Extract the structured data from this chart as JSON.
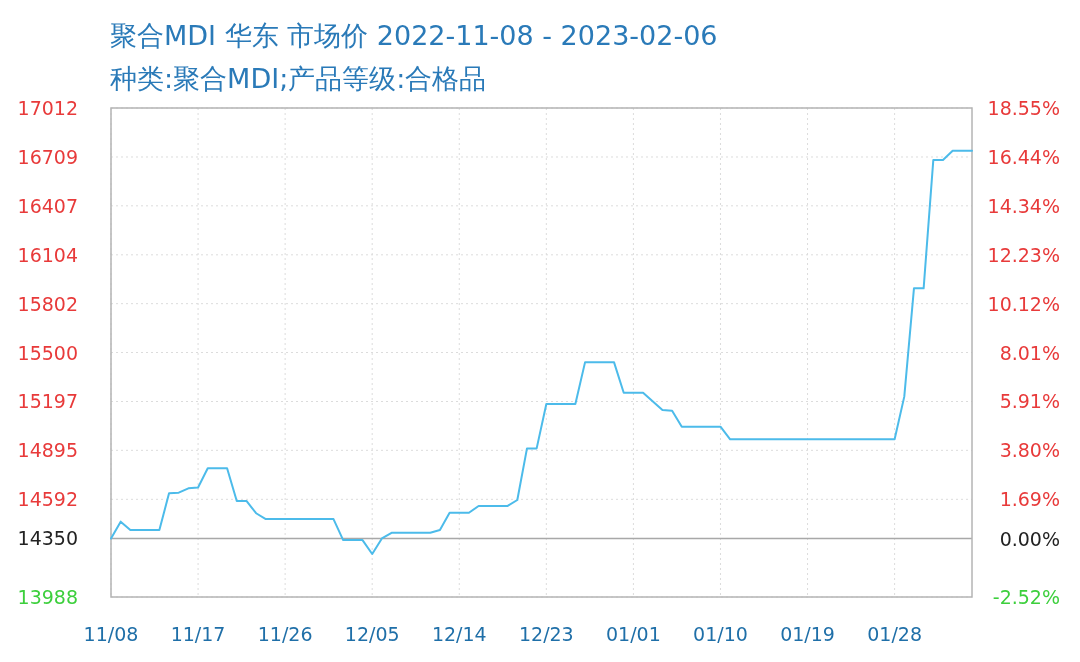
{
  "chart_data": {
    "type": "line",
    "title": "聚合MDI 华东 市场价 2022-11-08 - 2023-02-06",
    "subtitle": "种类:聚合MDI;产品等级:合格品",
    "x": [
      "2022-11-08",
      "2022-11-09",
      "2022-11-10",
      "2022-11-13",
      "2022-11-14",
      "2022-11-15",
      "2022-11-16",
      "2022-11-17",
      "2022-11-18",
      "2022-11-20",
      "2022-11-21",
      "2022-11-22",
      "2022-11-23",
      "2022-11-24",
      "2022-12-01",
      "2022-12-02",
      "2022-12-04",
      "2022-12-05",
      "2022-12-06",
      "2022-12-07",
      "2022-12-11",
      "2022-12-12",
      "2022-12-13",
      "2022-12-15",
      "2022-12-16",
      "2022-12-19",
      "2022-12-20",
      "2022-12-21",
      "2022-12-22",
      "2022-12-23",
      "2022-12-26",
      "2022-12-27",
      "2022-12-30",
      "2022-12-31",
      "2023-01-02",
      "2023-01-04",
      "2023-01-05",
      "2023-01-06",
      "2023-01-10",
      "2023-01-11",
      "2023-01-28",
      "2023-01-29",
      "2023-01-30",
      "2023-01-31",
      "2023-02-01",
      "2023-02-02",
      "2023-02-03",
      "2023-02-05"
    ],
    "series": [
      {
        "color": "#4cbbea",
        "values": [
          14350,
          14454,
          14402,
          14402,
          14629,
          14633,
          14660,
          14665,
          14784,
          14784,
          14582,
          14582,
          14506,
          14470,
          14470,
          14340,
          14340,
          14254,
          14350,
          14385,
          14385,
          14402,
          14509,
          14509,
          14551,
          14551,
          14588,
          14907,
          14907,
          15181,
          15181,
          15439,
          15439,
          15251,
          15251,
          15144,
          15140,
          15041,
          15041,
          14963,
          14963,
          15227,
          15897,
          15897,
          16690,
          16690,
          16748,
          16748
        ]
      }
    ],
    "xlim": [
      "2022-11-08",
      "2023-02-05"
    ],
    "xticks": [
      {
        "value": "2022-11-08",
        "label": "11/08"
      },
      {
        "value": "2022-11-17",
        "label": "11/17"
      },
      {
        "value": "2022-11-26",
        "label": "11/26"
      },
      {
        "value": "2022-12-05",
        "label": "12/05"
      },
      {
        "value": "2022-12-14",
        "label": "12/14"
      },
      {
        "value": "2022-12-23",
        "label": "12/23"
      },
      {
        "value": "2023-01-01",
        "label": "01/01"
      },
      {
        "value": "2023-01-10",
        "label": "01/10"
      },
      {
        "value": "2023-01-19",
        "label": "01/19"
      },
      {
        "value": "2023-01-28",
        "label": "01/28"
      }
    ],
    "ylim": [
      13988,
      17012
    ],
    "yticks": [
      13988,
      14350,
      14592,
      14895,
      15197,
      15500,
      15802,
      16104,
      16407,
      16709,
      17012
    ],
    "y2lim": [
      -2.52,
      18.55
    ],
    "y2ticks": [
      {
        "value": -2.52,
        "label": "-2.52%"
      },
      {
        "value": 0,
        "label": "0.00%"
      },
      {
        "value": 1.69,
        "label": "1.69%"
      },
      {
        "value": 3.8,
        "label": "3.80%"
      },
      {
        "value": 5.91,
        "label": "5.91%"
      },
      {
        "value": 8.01,
        "label": "8.01%"
      },
      {
        "value": 10.12,
        "label": "10.12%"
      },
      {
        "value": 12.23,
        "label": "12.23%"
      },
      {
        "value": 14.34,
        "label": "14.34%"
      },
      {
        "value": 16.44,
        "label": "16.44%"
      },
      {
        "value": 18.55,
        "label": "18.55%"
      }
    ],
    "ref_lines": [
      {
        "axis": "y",
        "value": 14350,
        "color": "#a8a8a8"
      }
    ],
    "grid": true
  }
}
